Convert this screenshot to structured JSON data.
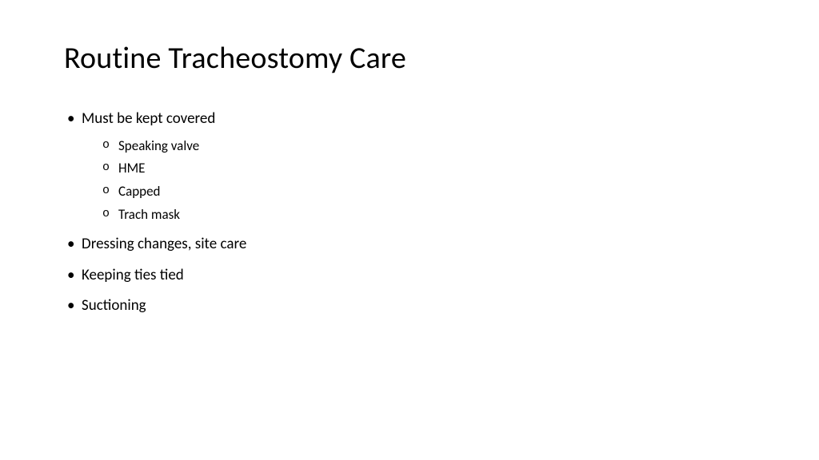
{
  "slide": {
    "title": "Routine Tracheostomy Care",
    "title_fontsize": 38,
    "title_color": "#000000",
    "background_color": "#ffffff",
    "body_fontsize_l1": 19,
    "body_fontsize_l2": 17,
    "text_color": "#000000",
    "bullets": [
      {
        "text": "Must be kept covered",
        "children": [
          {
            "text": "Speaking valve"
          },
          {
            "text": "HME"
          },
          {
            "text": "Capped"
          },
          {
            "text": "Trach mask"
          }
        ]
      },
      {
        "text": "Dressing changes, site care",
        "children": []
      },
      {
        "text": "Keeping ties tied",
        "children": []
      },
      {
        "text": "Suctioning",
        "children": []
      }
    ]
  }
}
